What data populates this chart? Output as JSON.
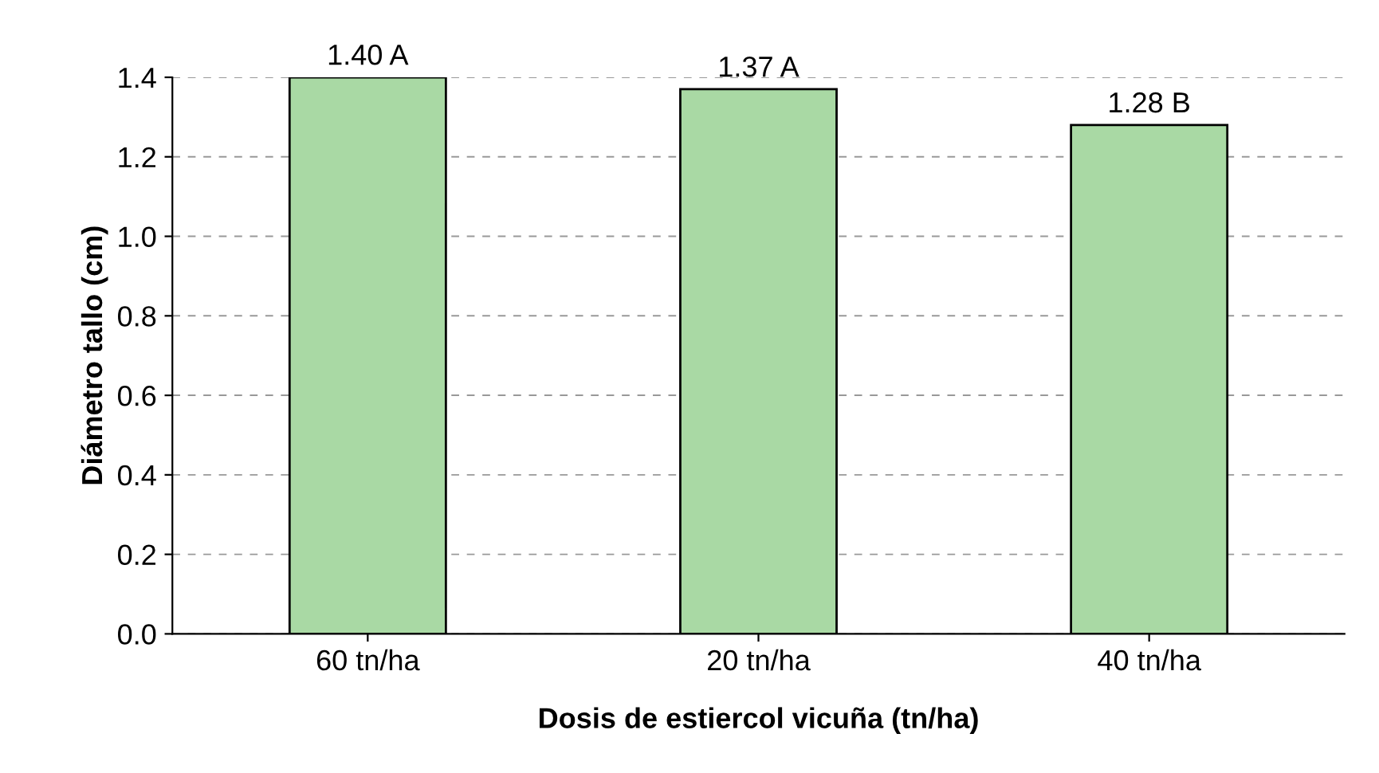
{
  "chart_data": {
    "type": "bar",
    "xlabel": "Dosis de estiercol vicuña (tn/ha)",
    "ylabel": "Diámetro tallo (cm)",
    "categories": [
      "60 tn/ha",
      "20 tn/ha",
      "40 tn/ha"
    ],
    "values": [
      1.4,
      1.37,
      1.28
    ],
    "value_labels": [
      "1.40 A",
      "1.37 A",
      "1.28 B"
    ],
    "color": "#a9d9a4",
    "ylim": [
      0,
      1.4
    ],
    "yticks": [
      {
        "value": 0,
        "label": "0.0"
      },
      {
        "value": 0.2,
        "label": "0.2"
      },
      {
        "value": 0.4,
        "label": "0.4"
      },
      {
        "value": 0.6,
        "label": "0.6"
      },
      {
        "value": 0.8,
        "label": "0.8"
      },
      {
        "value": 1.0,
        "label": "1.0"
      },
      {
        "value": 1.2,
        "label": "1.2"
      },
      {
        "value": 1.4,
        "label": "1.4"
      }
    ],
    "grid": "y"
  }
}
